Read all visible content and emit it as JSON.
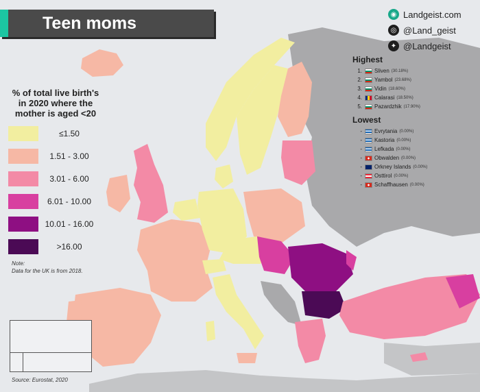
{
  "title": "Teen moms",
  "brand": {
    "site": "Landgeist.com",
    "instagram": "@Land_geist",
    "twitter": "@Landgeist"
  },
  "legend": {
    "title": "% of total live birth's in 2020 where the mother is aged <20",
    "items": [
      {
        "label": "≤1.50",
        "color": "#f2eea0"
      },
      {
        "label": "1.51 - 3.00",
        "color": "#f6b8a5"
      },
      {
        "label": "3.01 - 6.00",
        "color": "#f38aa6"
      },
      {
        "label": "6.01 - 10.00",
        "color": "#d83fa0"
      },
      {
        "label": "10.01 - 16.00",
        "color": "#8e0f82"
      },
      {
        "label": ">16.00",
        "color": "#4b0a55"
      }
    ]
  },
  "note": {
    "label": "Note:",
    "text": "Data for the UK is from 2018."
  },
  "source": "Source: Eurostat, 2020",
  "highest": {
    "title": "Highest",
    "items": [
      {
        "rank": "1.",
        "name": "Sliven",
        "value": "(30.18%)",
        "flag": "bulgaria"
      },
      {
        "rank": "2.",
        "name": "Yambol",
        "value": "(23.68%)",
        "flag": "bulgaria"
      },
      {
        "rank": "3.",
        "name": "Vidin",
        "value": "(18.60%)",
        "flag": "bulgaria"
      },
      {
        "rank": "4.",
        "name": "Calarasi",
        "value": "(18.50%)",
        "flag": "romania"
      },
      {
        "rank": "5.",
        "name": "Pazardzhik",
        "value": "(17.90%)",
        "flag": "bulgaria"
      }
    ]
  },
  "lowest": {
    "title": "Lowest",
    "items": [
      {
        "rank": "-",
        "name": "Evrytania",
        "value": "(0.00%)",
        "flag": "greece"
      },
      {
        "rank": "-",
        "name": "Kastoria",
        "value": "(0.00%)",
        "flag": "greece"
      },
      {
        "rank": "-",
        "name": "Lefkada",
        "value": "(0.00%)",
        "flag": "greece"
      },
      {
        "rank": "-",
        "name": "Obwalden",
        "value": "(0.00%)",
        "flag": "switzerland"
      },
      {
        "rank": "-",
        "name": "Orkney Islands",
        "value": "(0.00%)",
        "flag": "uk"
      },
      {
        "rank": "-",
        "name": "Osttirol",
        "value": "(0.00%)",
        "flag": "austria"
      },
      {
        "rank": "-",
        "name": "Schaffhausen",
        "value": "(0.00%)",
        "flag": "switzerland"
      }
    ]
  },
  "colors": {
    "land_no_data": "#a9a9ab",
    "sea": "#e7e9ec",
    "accent": "#1cc6a2"
  }
}
